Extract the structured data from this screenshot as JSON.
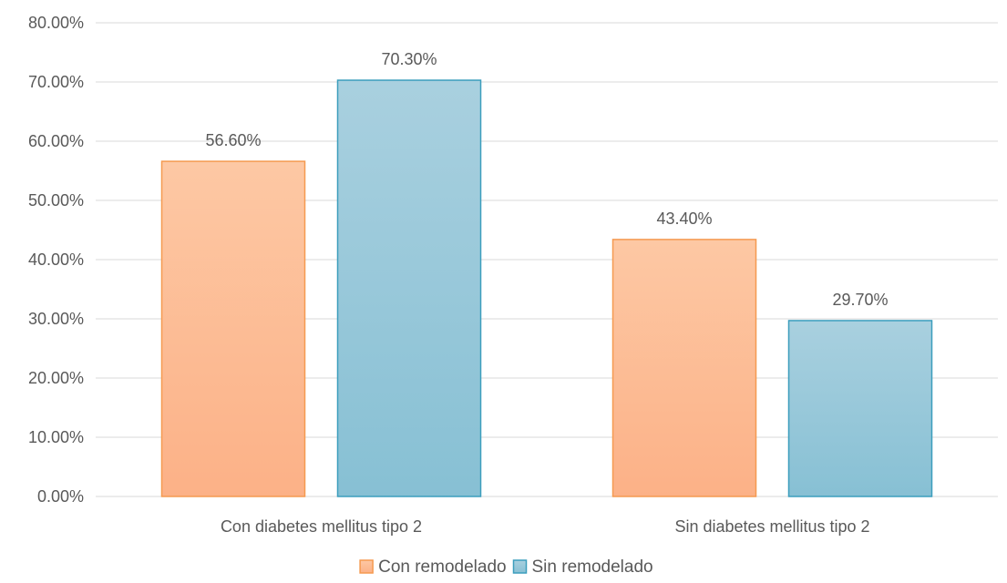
{
  "chart_data": {
    "type": "bar",
    "categories": [
      "Con diabetes mellitus tipo 2",
      "Sin diabetes mellitus tipo 2"
    ],
    "series": [
      {
        "name": "Con remodelado",
        "values": [
          56.6,
          43.4
        ],
        "labels": [
          "56.60%",
          "43.40%"
        ],
        "color_top": "#fdc8a4",
        "color_bottom": "#fcb187",
        "stroke": "#f59a50"
      },
      {
        "name": "Sin remodelado",
        "values": [
          70.3,
          29.7
        ],
        "labels": [
          "70.30%",
          "29.70%"
        ],
        "color_top": "#a9d0df",
        "color_bottom": "#87c0d4",
        "stroke": "#3c9ebd"
      }
    ],
    "y_ticks": [
      "0.00%",
      "10.00%",
      "20.00%",
      "30.00%",
      "40.00%",
      "50.00%",
      "60.00%",
      "70.00%",
      "80.00%"
    ],
    "ylim": [
      0,
      80
    ],
    "grid": true,
    "legend": "bottom"
  }
}
